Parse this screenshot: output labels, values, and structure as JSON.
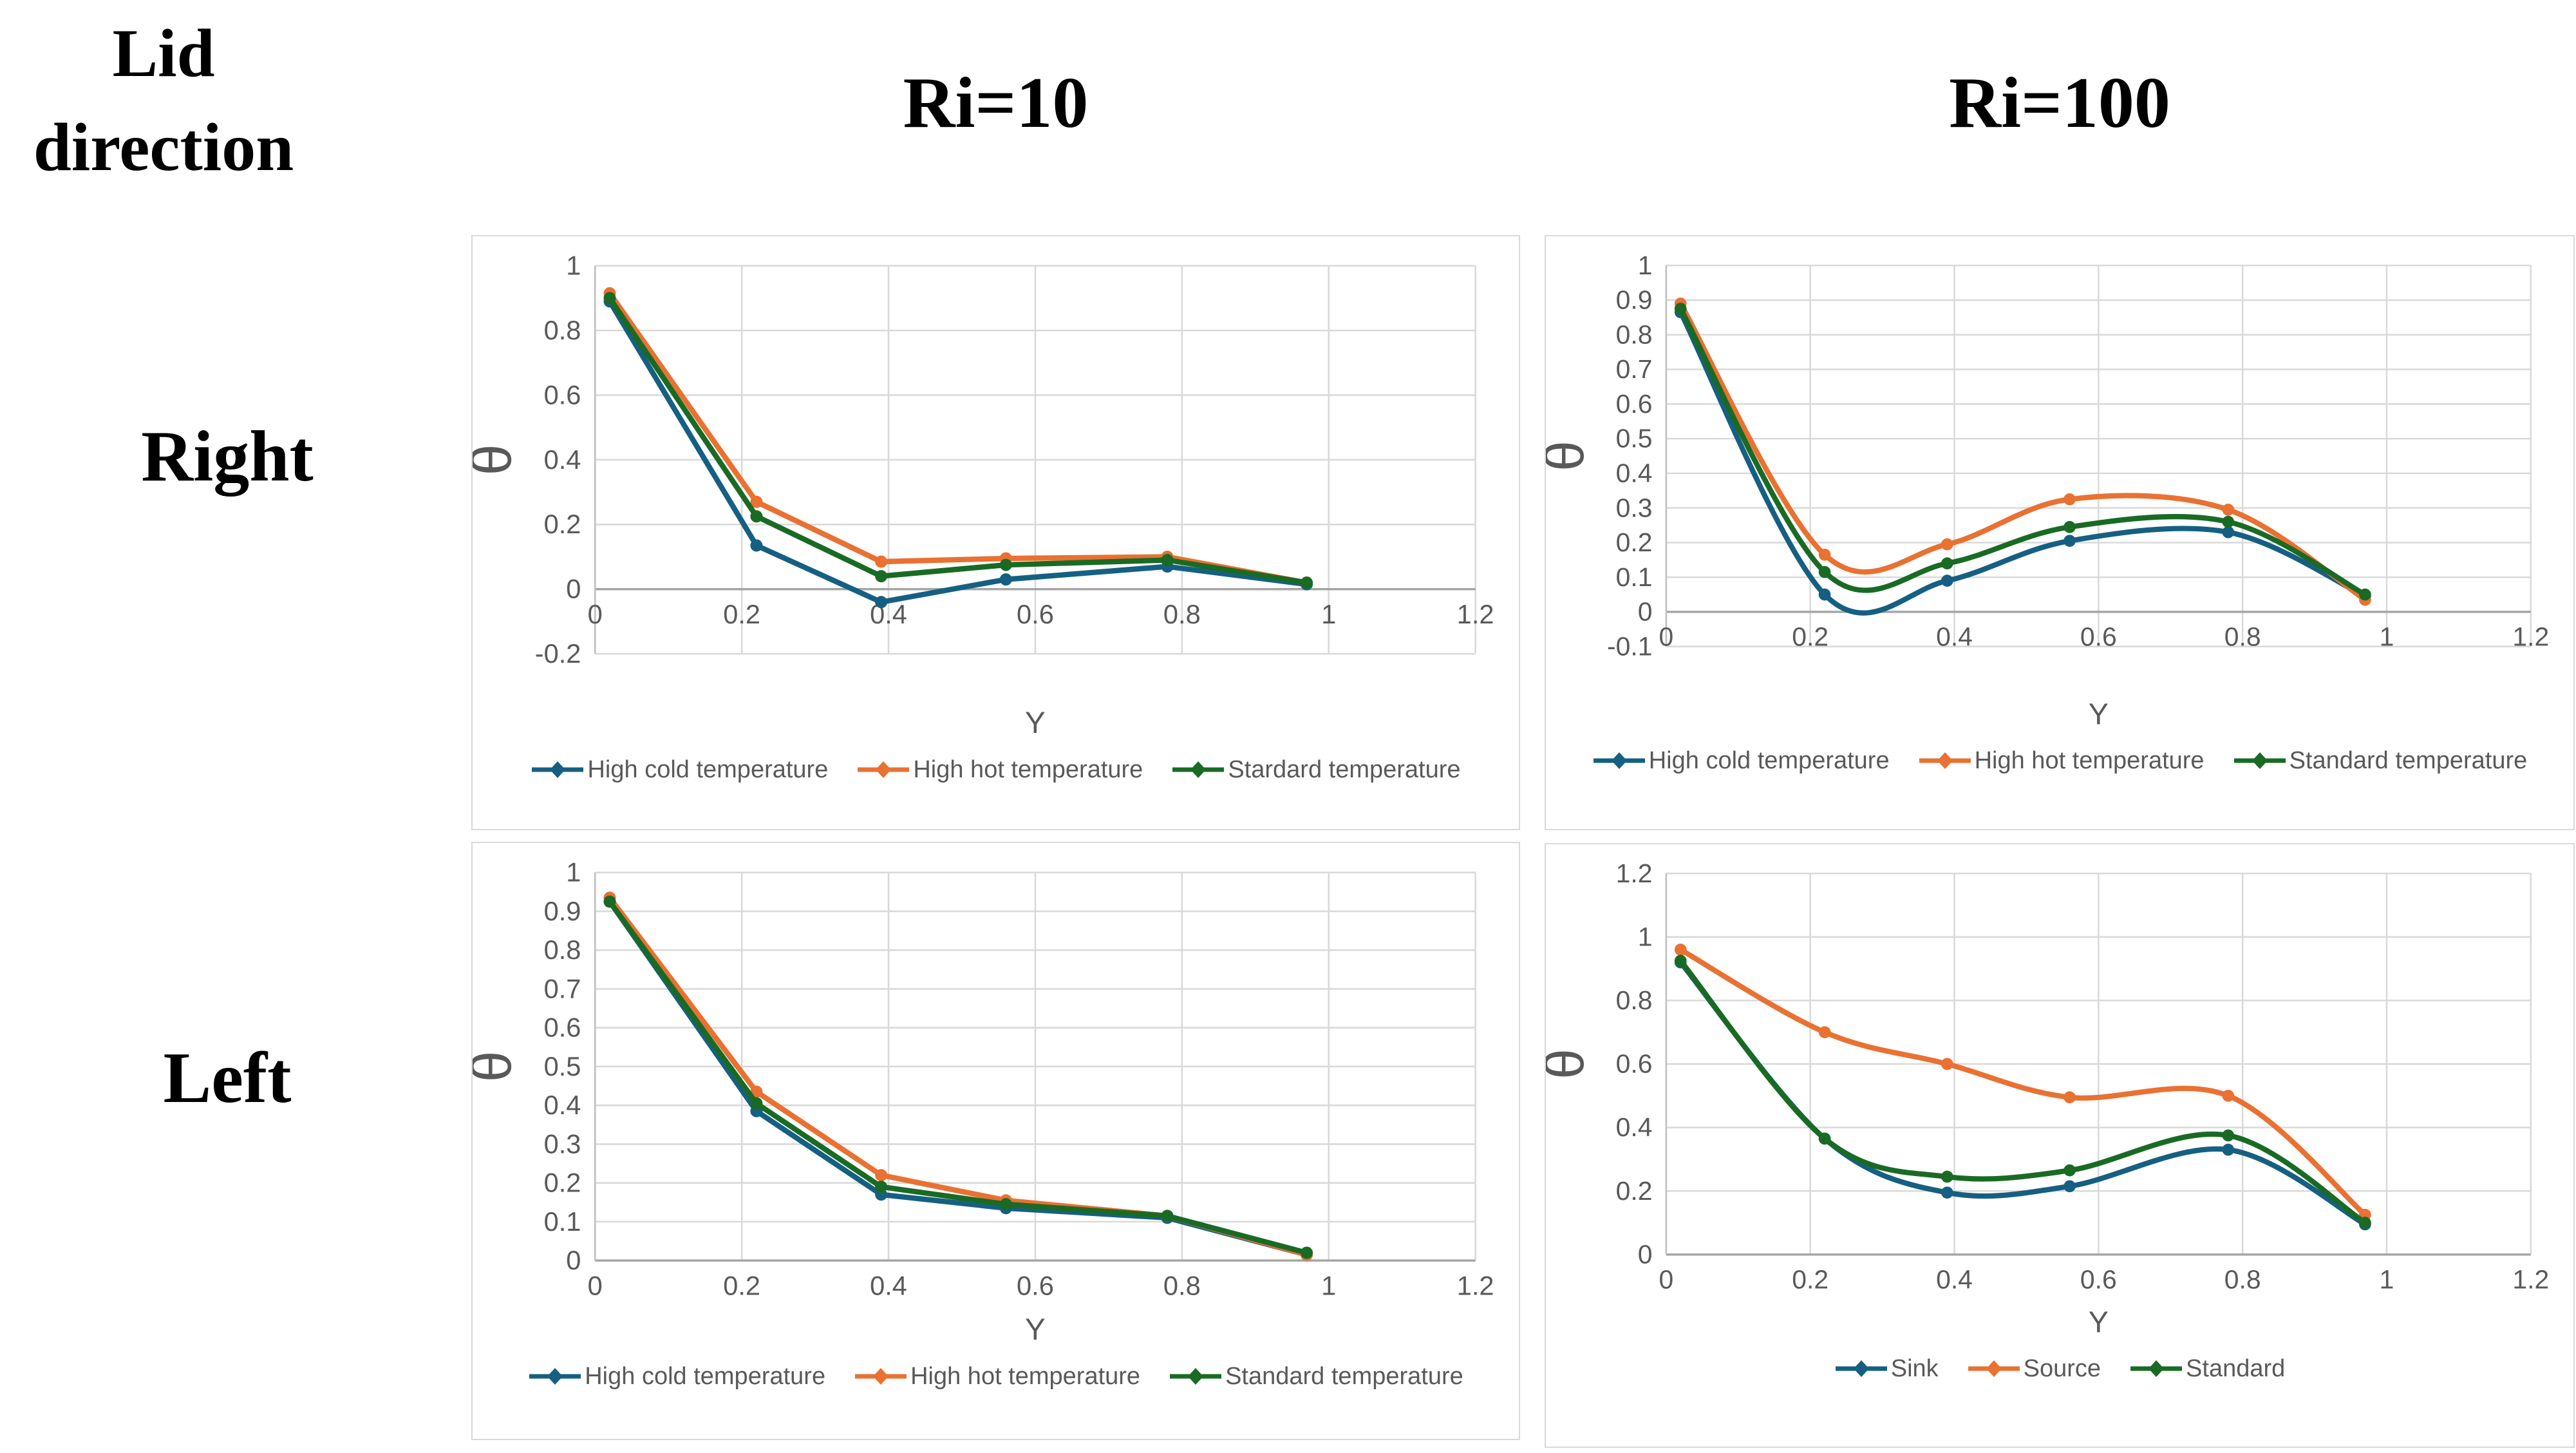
{
  "page": {
    "corner_line1": "Lid",
    "corner_line2": "direction",
    "col_headers": [
      "Ri=10",
      "Ri=100"
    ],
    "row_headers": [
      "Right",
      "Left"
    ]
  },
  "colors": {
    "series_blue": "#156082",
    "series_orange": "#E97132",
    "series_green": "#196B24",
    "gridline": "#D9D9D9",
    "zero_axis": "#A6A6A6",
    "axis_line": "#BFBFBF",
    "tick_text": "#595959",
    "panel_border": "#D9D9D9"
  },
  "chart_data": [
    {
      "type": "line",
      "row": "Right",
      "col": "Ri=10",
      "smooth": false,
      "xlabel": "Y",
      "ylabel": "θ",
      "xlim": [
        0,
        1.2
      ],
      "ylim": [
        -0.2,
        1
      ],
      "xticks": [
        0,
        0.2,
        0.4,
        0.6,
        0.8,
        1,
        1.2
      ],
      "yticks": [
        -0.2,
        0,
        0.2,
        0.4,
        0.6,
        0.8,
        1
      ],
      "grid": true,
      "legend_position": "bottom",
      "x": [
        0.02,
        0.22,
        0.39,
        0.56,
        0.78,
        0.97
      ],
      "series": [
        {
          "name": "High cold temperature",
          "color": "#156082",
          "values": [
            0.89,
            0.135,
            -0.04,
            0.03,
            0.07,
            0.015
          ]
        },
        {
          "name": "High hot temperature",
          "color": "#E97132",
          "values": [
            0.915,
            0.27,
            0.085,
            0.095,
            0.1,
            0.02
          ]
        },
        {
          "name": "Stardard temperature",
          "color": "#196B24",
          "values": [
            0.9,
            0.225,
            0.04,
            0.075,
            0.09,
            0.02
          ]
        }
      ]
    },
    {
      "type": "line",
      "row": "Right",
      "col": "Ri=100",
      "smooth": true,
      "xlabel": "Y",
      "ylabel": "θ",
      "xlim": [
        0,
        1.2
      ],
      "ylim": [
        -0.1,
        1
      ],
      "xticks": [
        0,
        0.2,
        0.4,
        0.6,
        0.8,
        1,
        1.2
      ],
      "yticks": [
        -0.1,
        0,
        0.1,
        0.2,
        0.3,
        0.4,
        0.5,
        0.6,
        0.7,
        0.8,
        0.9,
        1
      ],
      "grid": true,
      "legend_position": "bottom",
      "x": [
        0.02,
        0.22,
        0.39,
        0.56,
        0.78,
        0.97
      ],
      "series": [
        {
          "name": "High cold temperature",
          "color": "#156082",
          "values": [
            0.865,
            0.05,
            0.09,
            0.205,
            0.23,
            0.045
          ]
        },
        {
          "name": "High hot temperature",
          "color": "#E97132",
          "values": [
            0.89,
            0.165,
            0.195,
            0.325,
            0.295,
            0.035
          ]
        },
        {
          "name": "Standard temperature",
          "color": "#196B24",
          "values": [
            0.875,
            0.115,
            0.14,
            0.245,
            0.26,
            0.05
          ]
        }
      ]
    },
    {
      "type": "line",
      "row": "Left",
      "col": "Ri=10",
      "smooth": false,
      "xlabel": "Y",
      "ylabel": "θ",
      "xlim": [
        0,
        1.2
      ],
      "ylim": [
        0,
        1
      ],
      "xticks": [
        0,
        0.2,
        0.4,
        0.6,
        0.8,
        1,
        1.2
      ],
      "yticks": [
        0,
        0.1,
        0.2,
        0.3,
        0.4,
        0.5,
        0.6,
        0.7,
        0.8,
        0.9,
        1
      ],
      "grid": true,
      "legend_position": "bottom",
      "x": [
        0.02,
        0.22,
        0.39,
        0.56,
        0.78,
        0.97
      ],
      "series": [
        {
          "name": "High cold temperature",
          "color": "#156082",
          "values": [
            0.925,
            0.385,
            0.17,
            0.135,
            0.11,
            0.015
          ]
        },
        {
          "name": "High hot temperature",
          "color": "#E97132",
          "values": [
            0.935,
            0.435,
            0.22,
            0.155,
            0.115,
            0.015
          ]
        },
        {
          "name": "Standard temperature",
          "color": "#196B24",
          "values": [
            0.925,
            0.405,
            0.19,
            0.145,
            0.115,
            0.02
          ]
        }
      ]
    },
    {
      "type": "line",
      "row": "Left",
      "col": "Ri=100",
      "smooth": true,
      "xlabel": "Y",
      "ylabel": "θ",
      "xlim": [
        0,
        1.2
      ],
      "ylim": [
        0,
        1.2
      ],
      "xticks": [
        0,
        0.2,
        0.4,
        0.6,
        0.8,
        1,
        1.2
      ],
      "yticks": [
        0,
        0.2,
        0.4,
        0.6,
        0.8,
        1,
        1.2
      ],
      "grid": true,
      "legend_position": "bottom",
      "x": [
        0.02,
        0.22,
        0.39,
        0.56,
        0.78,
        0.97
      ],
      "series": [
        {
          "name": "Sink",
          "color": "#156082",
          "values": [
            0.92,
            0.365,
            0.195,
            0.215,
            0.33,
            0.095
          ]
        },
        {
          "name": "Source",
          "color": "#E97132",
          "values": [
            0.96,
            0.7,
            0.6,
            0.495,
            0.5,
            0.125
          ]
        },
        {
          "name": "Standard",
          "color": "#196B24",
          "values": [
            0.925,
            0.365,
            0.245,
            0.265,
            0.375,
            0.1
          ]
        }
      ]
    }
  ]
}
